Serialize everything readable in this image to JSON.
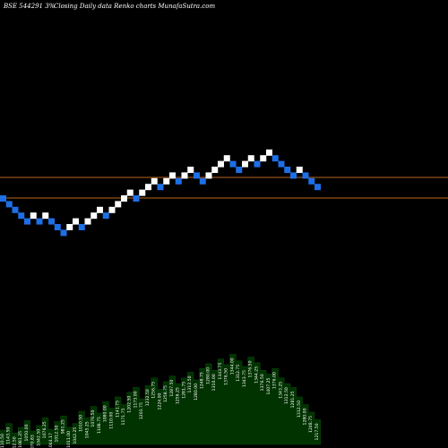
{
  "header": {
    "symbol": "BSE 544291 3%",
    "caption": "Closing Daily data  Renko  charts MunafaSutra.com"
  },
  "colors": {
    "background": "#000000",
    "up_brick": "#ffffff",
    "down_brick": "#1e6fe6",
    "reference_line": "#b8651b",
    "volume_fill": "#003300",
    "text": "#ffffff"
  },
  "chart_data": {
    "type": "renko",
    "title": "",
    "xlabel": "",
    "ylabel": "",
    "brick_direction": [
      "down",
      "down",
      "down",
      "down",
      "down",
      "up",
      "down",
      "up",
      "down",
      "down",
      "down",
      "up",
      "up",
      "down",
      "up",
      "up",
      "up",
      "down",
      "up",
      "up",
      "up",
      "up",
      "down",
      "up",
      "up",
      "up",
      "down",
      "up",
      "up",
      "down",
      "up",
      "up",
      "down",
      "down",
      "up",
      "up",
      "up",
      "up",
      "down",
      "down",
      "up",
      "up",
      "down",
      "up",
      "up",
      "down",
      "down",
      "down",
      "down",
      "up",
      "down",
      "down",
      "down"
    ],
    "brick_level": [
      1110.5,
      1143.5,
      1112.5,
      1081.25,
      1050.0,
      1070.83,
      1042.5,
      1076.25,
      1044.17,
      1012.5,
      981.25,
      1011.0,
      1042.25,
      1010.5,
      1045.25,
      1076.5,
      1108.75,
      1080.0,
      1110.0,
      1141.75,
      1171.75,
      1202.5,
      1173.0,
      1203.75,
      1232.5,
      1256.75,
      1224.0,
      1258.75,
      1287.5,
      1256.25,
      1281.75,
      1312.5,
      1280.0,
      1248.75,
      1280.0,
      1310.0,
      1343.75,
      1376.5,
      1344.0,
      1312.75,
      1343.75,
      1376.5,
      1344.25,
      1376.5,
      1407.25,
      1376.0,
      1343.25,
      1312.5,
      1281.25,
      1312.5,
      1280.0,
      1248.75,
      1217.5
    ],
    "volume_profile": [
      0.15,
      0.22,
      0.12,
      0.18,
      0.25,
      0.14,
      0.2,
      0.28,
      0.16,
      0.24,
      0.3,
      0.18,
      0.22,
      0.35,
      0.28,
      0.4,
      0.33,
      0.45,
      0.38,
      0.5,
      0.42,
      0.55,
      0.6,
      0.48,
      0.62,
      0.7,
      0.58,
      0.66,
      0.72,
      0.64,
      0.7,
      0.76,
      0.68,
      0.8,
      0.85,
      0.78,
      0.9,
      0.84,
      0.95,
      0.88,
      0.82,
      0.92,
      0.86,
      0.78,
      0.74,
      0.8,
      0.7,
      0.64,
      0.6,
      0.5,
      0.42,
      0.34,
      0.26
    ],
    "reference_lines": [
      "upper",
      "lower"
    ]
  }
}
